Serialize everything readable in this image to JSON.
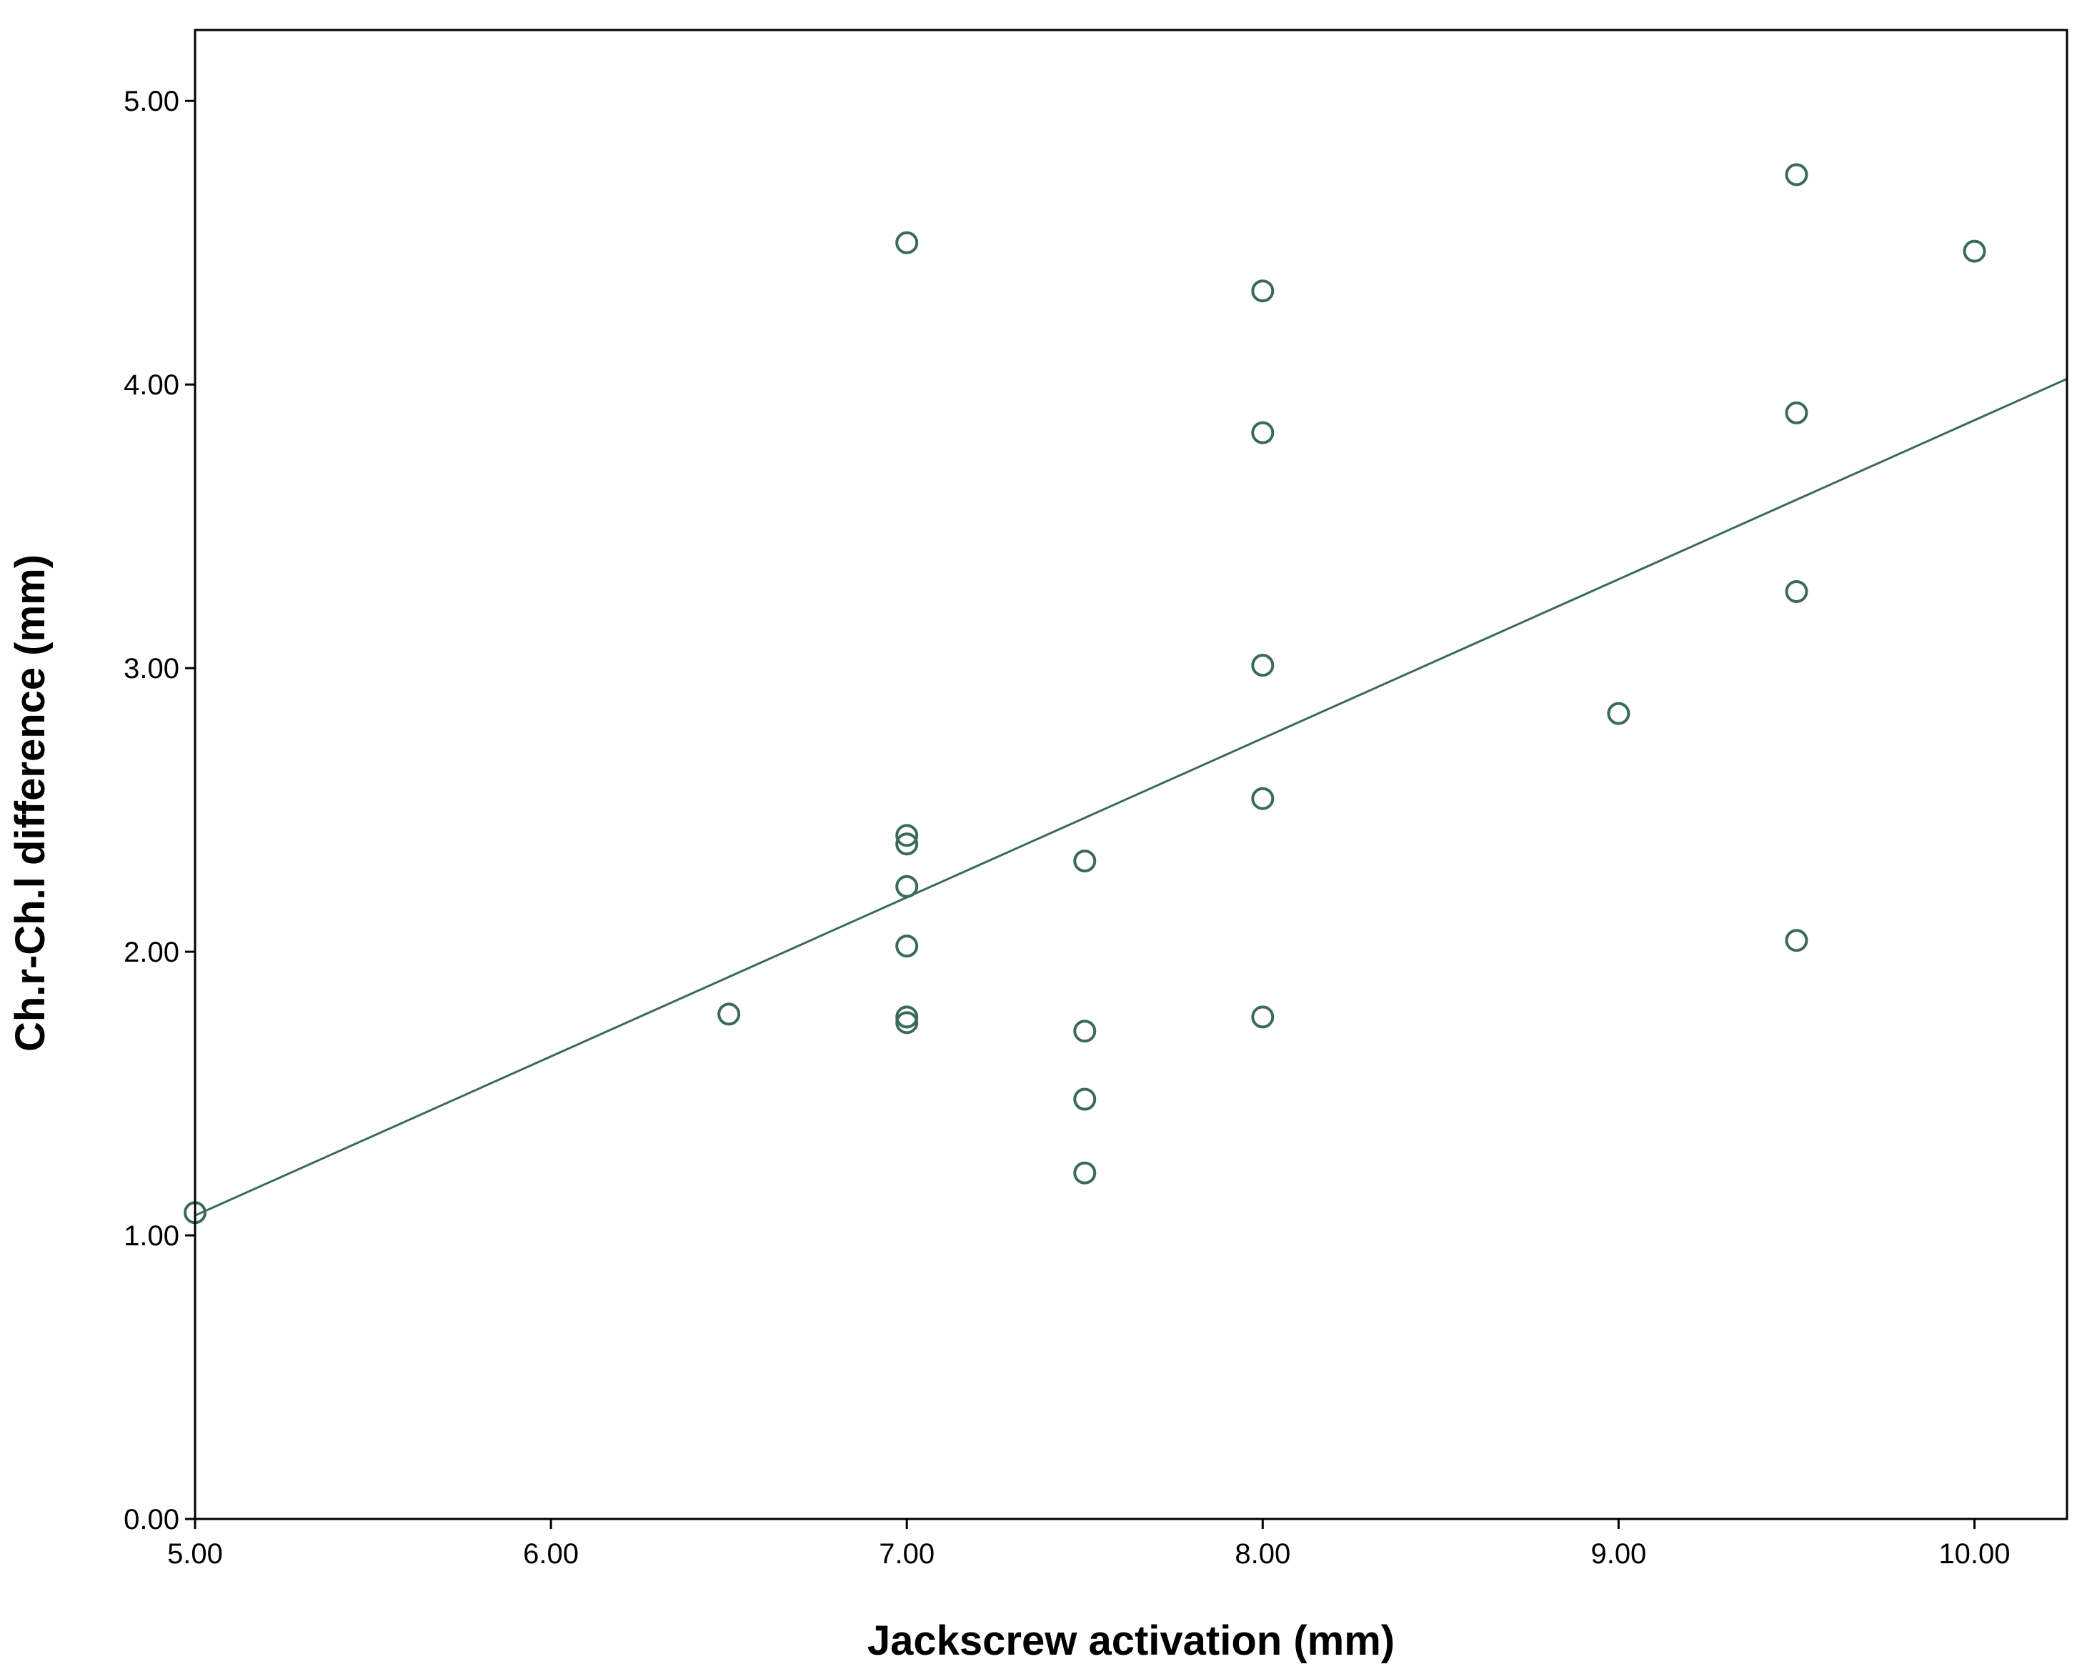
{
  "chart_data": {
    "type": "scatter",
    "title": "",
    "xlabel": "Jackscrew activation (mm)",
    "ylabel": "Ch.r-Ch.l difference (mm)",
    "xlim": [
      5.0,
      10.26
    ],
    "ylim": [
      0.0,
      5.25
    ],
    "x_ticks": [
      "5.00",
      "6.00",
      "7.00",
      "8.00",
      "9.00",
      "10.00"
    ],
    "y_ticks": [
      "0.00",
      "1.00",
      "2.00",
      "3.00",
      "4.00",
      "5.00"
    ],
    "grid": false,
    "legend": "none",
    "colors": {
      "marker": "#3b6b58",
      "line": "#3b6b58",
      "axes": "#000000",
      "background": "#ffffff"
    },
    "series": [
      {
        "points": [
          {
            "x": 5.0,
            "y": 1.08
          },
          {
            "x": 6.5,
            "y": 1.78
          },
          {
            "x": 7.0,
            "y": 4.5
          },
          {
            "x": 7.0,
            "y": 2.41
          },
          {
            "x": 7.0,
            "y": 2.38
          },
          {
            "x": 7.0,
            "y": 2.23
          },
          {
            "x": 7.0,
            "y": 2.02
          },
          {
            "x": 7.0,
            "y": 1.77
          },
          {
            "x": 7.0,
            "y": 1.75
          },
          {
            "x": 7.5,
            "y": 2.32
          },
          {
            "x": 7.5,
            "y": 1.72
          },
          {
            "x": 7.5,
            "y": 1.48
          },
          {
            "x": 7.5,
            "y": 1.22
          },
          {
            "x": 8.0,
            "y": 4.33
          },
          {
            "x": 8.0,
            "y": 3.83
          },
          {
            "x": 8.0,
            "y": 3.01
          },
          {
            "x": 8.0,
            "y": 2.54
          },
          {
            "x": 8.0,
            "y": 1.77
          },
          {
            "x": 9.0,
            "y": 2.84
          },
          {
            "x": 9.5,
            "y": 4.74
          },
          {
            "x": 9.5,
            "y": 3.9
          },
          {
            "x": 9.5,
            "y": 3.27
          },
          {
            "x": 9.5,
            "y": 2.04
          },
          {
            "x": 10.0,
            "y": 4.47
          }
        ]
      }
    ],
    "fit_line": {
      "start": {
        "x": 5.0,
        "y": 1.07
      },
      "end": {
        "x": 10.26,
        "y": 4.02
      }
    }
  }
}
